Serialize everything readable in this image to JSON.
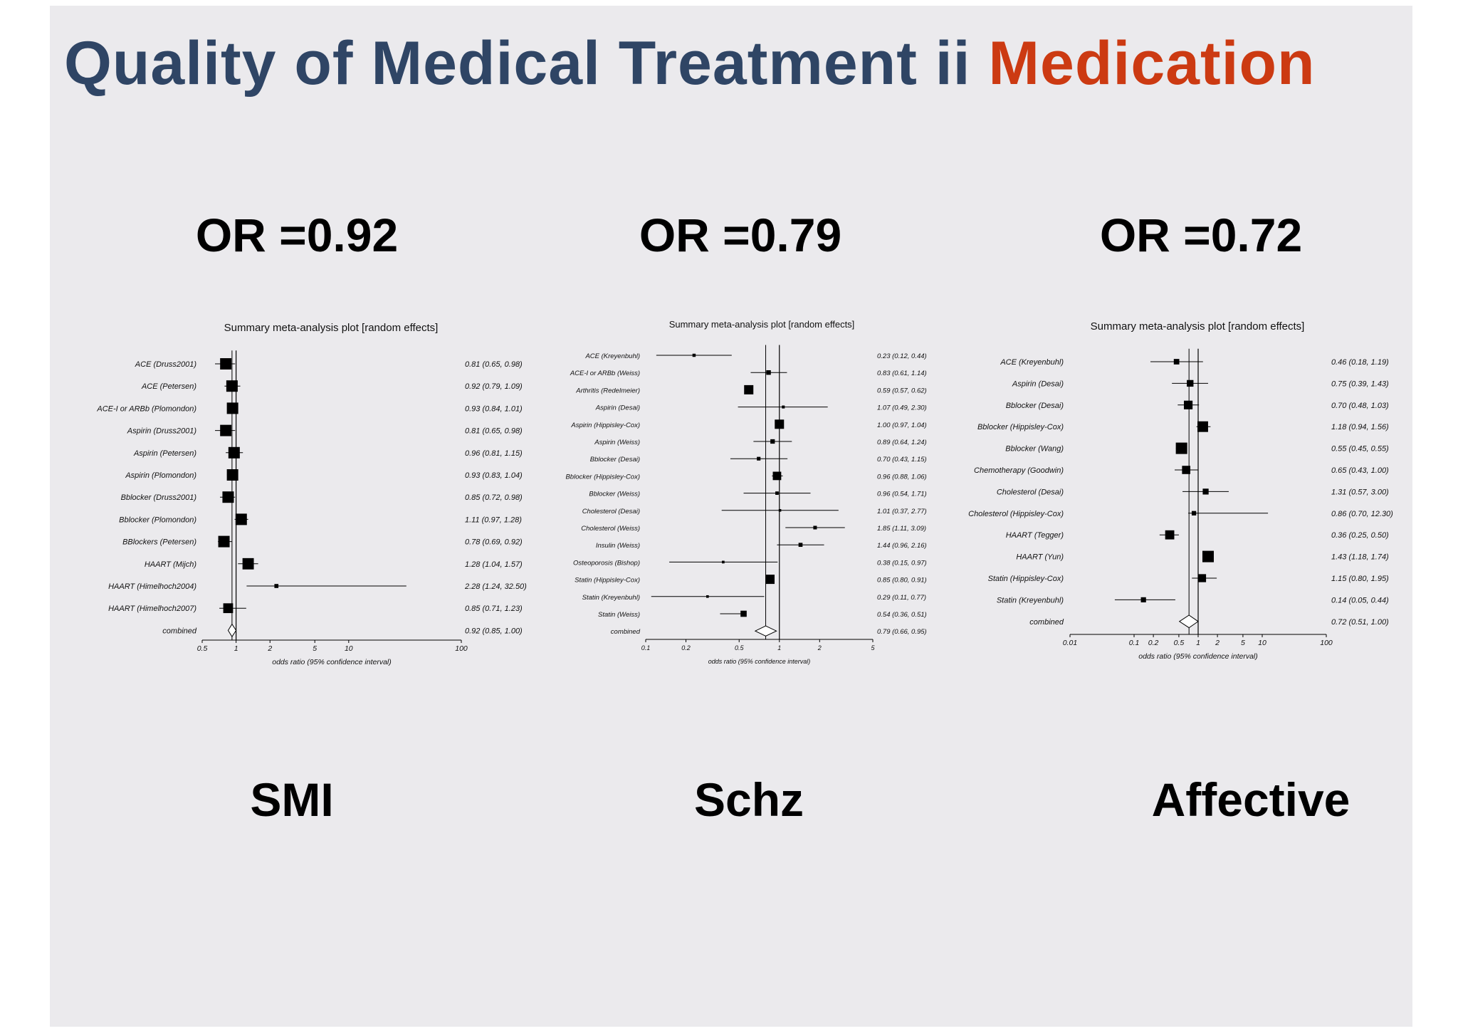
{
  "title": {
    "main": "Quality of Medical Treatment ii",
    "accent": "Medication"
  },
  "colors": {
    "title": "#2f4565",
    "accent": "#cc3a12",
    "background": "#ebeaed",
    "marks": "#000000"
  },
  "panels": [
    {
      "or_label": "OR =0.92",
      "group_label": "SMI"
    },
    {
      "or_label": "OR =0.79",
      "group_label": "Schz"
    },
    {
      "or_label": "OR =0.72",
      "group_label": "Affective"
    }
  ],
  "chart_data": [
    {
      "type": "forest",
      "title": "Summary meta-analysis plot [random effects]",
      "xlabel": "odds ratio (95% confidence interval)",
      "xscale": "log",
      "xlim": [
        0.5,
        100
      ],
      "ticks": [
        0.5,
        1,
        2,
        5,
        10,
        100
      ],
      "reference_line": 1,
      "rows": [
        {
          "label": "ACE (Druss2001)",
          "or": 0.81,
          "lo": 0.65,
          "hi": 0.98,
          "ci_text": "0.81 (0.65, 0.98)"
        },
        {
          "label": "ACE (Petersen)",
          "or": 0.92,
          "lo": 0.79,
          "hi": 1.09,
          "ci_text": "0.92 (0.79, 1.09)"
        },
        {
          "label": "ACE-I or ARBb (Plomondon)",
          "or": 0.93,
          "lo": 0.84,
          "hi": 1.01,
          "ci_text": "0.93 (0.84, 1.01)"
        },
        {
          "label": "Aspirin (Druss2001)",
          "or": 0.81,
          "lo": 0.65,
          "hi": 0.98,
          "ci_text": "0.81 (0.65, 0.98)"
        },
        {
          "label": "Aspirin (Petersen)",
          "or": 0.96,
          "lo": 0.81,
          "hi": 1.15,
          "ci_text": "0.96 (0.81, 1.15)"
        },
        {
          "label": "Aspirin (Plomondon)",
          "or": 0.93,
          "lo": 0.83,
          "hi": 1.04,
          "ci_text": "0.93 (0.83, 1.04)"
        },
        {
          "label": "Bblocker (Druss2001)",
          "or": 0.85,
          "lo": 0.72,
          "hi": 0.98,
          "ci_text": "0.85 (0.72, 0.98)"
        },
        {
          "label": "Bblocker (Plomondon)",
          "or": 1.11,
          "lo": 0.97,
          "hi": 1.28,
          "ci_text": "1.11 (0.97, 1.28)"
        },
        {
          "label": "BBlockers (Petersen)",
          "or": 0.78,
          "lo": 0.69,
          "hi": 0.92,
          "ci_text": "0.78 (0.69, 0.92)"
        },
        {
          "label": "HAART (Mijch)",
          "or": 1.28,
          "lo": 1.04,
          "hi": 1.57,
          "ci_text": "1.28 (1.04, 1.57)"
        },
        {
          "label": "HAART (Himelhoch2004)",
          "or": 2.28,
          "lo": 1.24,
          "hi": 32.5,
          "ci_text": "2.28 (1.24, 32.50)"
        },
        {
          "label": "HAART (Himelhoch2007)",
          "or": 0.85,
          "lo": 0.71,
          "hi": 1.23,
          "ci_text": "0.85 (0.71, 1.23)"
        }
      ],
      "combined": {
        "label": "combined",
        "or": 0.92,
        "lo": 0.85,
        "hi": 1.0,
        "ci_text": "0.92 (0.85, 1.00)"
      }
    },
    {
      "type": "forest",
      "title": "Summary meta-analysis plot [random effects]",
      "xlabel": "odds ratio (95% confidence interval)",
      "xscale": "log",
      "xlim": [
        0.1,
        5
      ],
      "ticks": [
        0.1,
        0.2,
        0.5,
        1,
        2,
        5
      ],
      "reference_line": 1,
      "rows": [
        {
          "label": "ACE (Kreyenbuhl)",
          "or": 0.23,
          "lo": 0.12,
          "hi": 0.44,
          "ci_text": "0.23 (0.12, 0.44)"
        },
        {
          "label": "ACE-I or ARBb (Weiss)",
          "or": 0.83,
          "lo": 0.61,
          "hi": 1.14,
          "ci_text": "0.83 (0.61, 1.14)"
        },
        {
          "label": "Arthritis (Redelmeier)",
          "or": 0.59,
          "lo": 0.57,
          "hi": 0.62,
          "ci_text": "0.59 (0.57, 0.62)"
        },
        {
          "label": "Aspirin (Desai)",
          "or": 1.07,
          "lo": 0.49,
          "hi": 2.3,
          "ci_text": "1.07 (0.49, 2.30)"
        },
        {
          "label": "Aspirin (Hippisley-Cox)",
          "or": 1.0,
          "lo": 0.97,
          "hi": 1.04,
          "ci_text": "1.00 (0.97, 1.04)"
        },
        {
          "label": "Aspirin (Weiss)",
          "or": 0.89,
          "lo": 0.64,
          "hi": 1.24,
          "ci_text": "0.89 (0.64, 1.24)"
        },
        {
          "label": "Bblocker (Desai)",
          "or": 0.7,
          "lo": 0.43,
          "hi": 1.15,
          "ci_text": "0.70 (0.43, 1.15)"
        },
        {
          "label": "Bblocker (Hippisley-Cox)",
          "or": 0.96,
          "lo": 0.88,
          "hi": 1.06,
          "ci_text": "0.96 (0.88, 1.06)"
        },
        {
          "label": "Bblocker (Weiss)",
          "or": 0.96,
          "lo": 0.54,
          "hi": 1.71,
          "ci_text": "0.96 (0.54, 1.71)"
        },
        {
          "label": "Cholesterol (Desai)",
          "or": 1.01,
          "lo": 0.37,
          "hi": 2.77,
          "ci_text": "1.01 (0.37, 2.77)"
        },
        {
          "label": "Cholesterol (Weiss)",
          "or": 1.85,
          "lo": 1.11,
          "hi": 3.09,
          "ci_text": "1.85 (1.11, 3.09)"
        },
        {
          "label": "Insulin (Weiss)",
          "or": 1.44,
          "lo": 0.96,
          "hi": 2.16,
          "ci_text": "1.44 (0.96, 2.16)"
        },
        {
          "label": "Osteoporosis (Bishop)",
          "or": 0.38,
          "lo": 0.15,
          "hi": 0.97,
          "ci_text": "0.38 (0.15, 0.97)"
        },
        {
          "label": "Statin (Hippisley-Cox)",
          "or": 0.85,
          "lo": 0.8,
          "hi": 0.91,
          "ci_text": "0.85 (0.80, 0.91)"
        },
        {
          "label": "Statin (Kreyenbuhl)",
          "or": 0.29,
          "lo": 0.11,
          "hi": 0.77,
          "ci_text": "0.29 (0.11, 0.77)"
        },
        {
          "label": "Statin (Weiss)",
          "or": 0.54,
          "lo": 0.36,
          "hi": 0.51,
          "ci_text": "0.54 (0.36, 0.51)"
        }
      ],
      "combined": {
        "label": "combined",
        "or": 0.79,
        "lo": 0.66,
        "hi": 0.95,
        "ci_text": "0.79 (0.66, 0.95)"
      }
    },
    {
      "type": "forest",
      "title": "Summary meta-analysis plot [random effects]",
      "xlabel": "odds ratio (95% confidence interval)",
      "xscale": "log",
      "xlim": [
        0.01,
        100
      ],
      "ticks": [
        0.01,
        0.1,
        0.2,
        0.5,
        1,
        2,
        5,
        10,
        100
      ],
      "reference_line": 1,
      "rows": [
        {
          "label": "ACE (Kreyenbuhl)",
          "or": 0.46,
          "lo": 0.18,
          "hi": 1.19,
          "ci_text": "0.46 (0.18, 1.19)"
        },
        {
          "label": "Aspirin (Desai)",
          "or": 0.75,
          "lo": 0.39,
          "hi": 1.43,
          "ci_text": "0.75 (0.39, 1.43)"
        },
        {
          "label": "Bblocker (Desai)",
          "or": 0.7,
          "lo": 0.48,
          "hi": 1.03,
          "ci_text": "0.70 (0.48, 1.03)"
        },
        {
          "label": "Bblocker (Hippisley-Cox)",
          "or": 1.18,
          "lo": 0.94,
          "hi": 1.56,
          "ci_text": "1.18 (0.94, 1.56)"
        },
        {
          "label": "Bblocker (Wang)",
          "or": 0.55,
          "lo": 0.45,
          "hi": 0.55,
          "ci_text": "0.55 (0.45, 0.55)"
        },
        {
          "label": "Chemotherapy (Goodwin)",
          "or": 0.65,
          "lo": 0.43,
          "hi": 1.0,
          "ci_text": "0.65 (0.43, 1.00)"
        },
        {
          "label": "Cholesterol (Desai)",
          "or": 1.31,
          "lo": 0.57,
          "hi": 3.0,
          "ci_text": "1.31 (0.57, 3.00)"
        },
        {
          "label": "Cholesterol (Hippisley-Cox)",
          "or": 0.86,
          "lo": 0.7,
          "hi": 12.3,
          "ci_text": "0.86 (0.70, 12.30)"
        },
        {
          "label": "HAART (Tegger)",
          "or": 0.36,
          "lo": 0.25,
          "hi": 0.5,
          "ci_text": "0.36 (0.25, 0.50)"
        },
        {
          "label": "HAART (Yun)",
          "or": 1.43,
          "lo": 1.18,
          "hi": 1.74,
          "ci_text": "1.43 (1.18, 1.74)"
        },
        {
          "label": "Statin (Hippisley-Cox)",
          "or": 1.15,
          "lo": 0.8,
          "hi": 1.95,
          "ci_text": "1.15 (0.80, 1.95)"
        },
        {
          "label": "Statin (Kreyenbuhl)",
          "or": 0.14,
          "lo": 0.05,
          "hi": 0.44,
          "ci_text": "0.14 (0.05, 0.44)"
        }
      ],
      "combined": {
        "label": "combined",
        "or": 0.72,
        "lo": 0.51,
        "hi": 1.0,
        "ci_text": "0.72 (0.51, 1.00)"
      }
    }
  ]
}
